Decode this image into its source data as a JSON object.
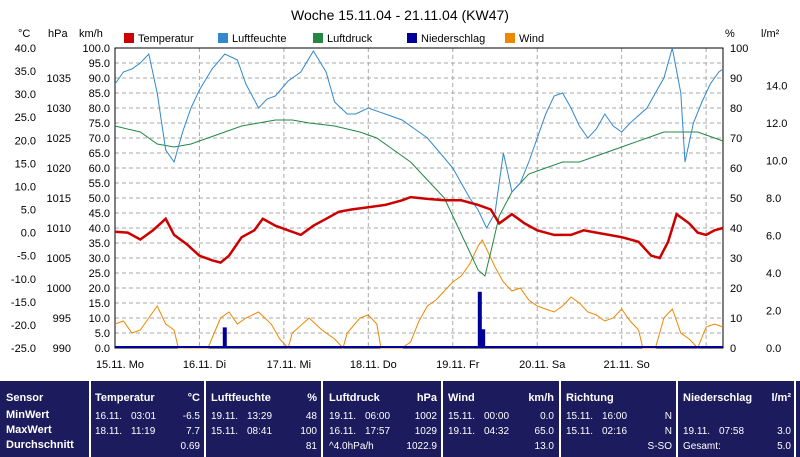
{
  "chart_data": {
    "type": "line",
    "title": "Woche 15.11.04 - 21.11.04 (KW47)",
    "x_ticks": [
      "15.11. Mo",
      "16.11. Di",
      "17.11. Mi",
      "18.11. Do",
      "19.11. Fr",
      "20.11. Sa",
      "21.11. So"
    ],
    "left_axes": [
      {
        "unit": "°C",
        "ticks": [
          "40.0",
          "35.0",
          "30.0",
          "25.0",
          "20.0",
          "15.0",
          "10.0",
          "5.0",
          "0.0",
          "-5.0",
          "-10.0",
          "-15.0",
          "-20.0",
          "-25.0"
        ]
      },
      {
        "unit": "hPa",
        "ticks": [
          "1035",
          "1030",
          "1025",
          "1020",
          "1015",
          "1010",
          "1005",
          "1000",
          "995",
          "990"
        ]
      },
      {
        "unit": "km/h",
        "ticks": [
          "100.0",
          "95.0",
          "90.0",
          "85.0",
          "80.0",
          "75.0",
          "70.0",
          "65.0",
          "60.0",
          "55.0",
          "50.0",
          "45.0",
          "40.0",
          "35.0",
          "30.0",
          "25.0",
          "20.0",
          "15.0",
          "10.0",
          "5.0",
          "0.0"
        ]
      }
    ],
    "right_axes": [
      {
        "unit": "%",
        "ticks": [
          "100",
          "90",
          "80",
          "70",
          "60",
          "50",
          "40",
          "30",
          "20",
          "10",
          "0"
        ]
      },
      {
        "unit": "l/m²",
        "ticks": [
          "14.0",
          "12.0",
          "10.0",
          "8.0",
          "6.0",
          "4.0",
          "2.0",
          "0.0"
        ]
      }
    ],
    "grid": true,
    "legend": [
      {
        "name": "Temperatur",
        "color": "#cc0000"
      },
      {
        "name": "Luftfeuchte",
        "color": "#3388cc"
      },
      {
        "name": "Luftdruck",
        "color": "#228844"
      },
      {
        "name": "Niederschlag",
        "color": "#000099"
      },
      {
        "name": "Wind",
        "color": "#ee8800"
      }
    ],
    "series": [
      {
        "name": "Temperatur",
        "unit": "°C",
        "days": [
          [
            0,
            0.2
          ],
          [
            0.15,
            0.0
          ],
          [
            0.3,
            -1.5
          ],
          [
            0.45,
            0.5
          ],
          [
            0.6,
            3.0
          ],
          [
            0.7,
            -0.5
          ],
          [
            0.85,
            -2.5
          ],
          [
            1.0,
            -5.0
          ],
          [
            1.15,
            -6.0
          ],
          [
            1.25,
            -6.5
          ],
          [
            1.35,
            -5.0
          ],
          [
            1.5,
            -1.0
          ],
          [
            1.65,
            0.5
          ],
          [
            1.75,
            3.0
          ],
          [
            1.9,
            1.5
          ],
          [
            2.05,
            0.5
          ],
          [
            2.2,
            -0.5
          ],
          [
            2.35,
            1.5
          ],
          [
            2.5,
            3.0
          ],
          [
            2.65,
            4.5
          ],
          [
            2.8,
            5.0
          ],
          [
            3.0,
            5.5
          ],
          [
            3.2,
            6.0
          ],
          [
            3.4,
            7.0
          ],
          [
            3.5,
            7.7
          ],
          [
            3.7,
            7.3
          ],
          [
            3.9,
            7.0
          ],
          [
            4.1,
            7.0
          ],
          [
            4.3,
            6.0
          ],
          [
            4.45,
            5.0
          ],
          [
            4.55,
            2.0
          ],
          [
            4.7,
            4.0
          ],
          [
            4.85,
            2.0
          ],
          [
            5.0,
            0.5
          ],
          [
            5.2,
            -0.5
          ],
          [
            5.4,
            -0.5
          ],
          [
            5.55,
            0.5
          ],
          [
            5.7,
            0.0
          ],
          [
            5.85,
            -0.5
          ],
          [
            6.0,
            -1.0
          ],
          [
            6.2,
            -2.0
          ],
          [
            6.35,
            -5.0
          ],
          [
            6.45,
            -5.5
          ],
          [
            6.55,
            -2.0
          ],
          [
            6.65,
            4.0
          ],
          [
            6.8,
            2.0
          ],
          [
            6.9,
            0.0
          ],
          [
            7.0,
            -0.5
          ],
          [
            7.1,
            0.5
          ],
          [
            7.2,
            1.0
          ]
        ]
      },
      {
        "name": "Luftfeuchte",
        "unit": "%",
        "days": [
          [
            0,
            88
          ],
          [
            0.1,
            92
          ],
          [
            0.2,
            93
          ],
          [
            0.3,
            95
          ],
          [
            0.4,
            98
          ],
          [
            0.5,
            85
          ],
          [
            0.6,
            66
          ],
          [
            0.7,
            62
          ],
          [
            0.8,
            72
          ],
          [
            0.9,
            80
          ],
          [
            1.0,
            86
          ],
          [
            1.15,
            93
          ],
          [
            1.3,
            98
          ],
          [
            1.45,
            96
          ],
          [
            1.55,
            88
          ],
          [
            1.7,
            80
          ],
          [
            1.8,
            83
          ],
          [
            1.9,
            84
          ],
          [
            2.05,
            89
          ],
          [
            2.2,
            92
          ],
          [
            2.35,
            99
          ],
          [
            2.5,
            92
          ],
          [
            2.6,
            82
          ],
          [
            2.75,
            78
          ],
          [
            2.85,
            78
          ],
          [
            3.0,
            80
          ],
          [
            3.2,
            78
          ],
          [
            3.4,
            76
          ],
          [
            3.55,
            73
          ],
          [
            3.7,
            70
          ],
          [
            3.85,
            65
          ],
          [
            4.0,
            60
          ],
          [
            4.1,
            55
          ],
          [
            4.2,
            50
          ],
          [
            4.3,
            46
          ],
          [
            4.4,
            40
          ],
          [
            4.5,
            45
          ],
          [
            4.6,
            65
          ],
          [
            4.7,
            52
          ],
          [
            4.8,
            55
          ],
          [
            4.9,
            62
          ],
          [
            5.0,
            70
          ],
          [
            5.1,
            78
          ],
          [
            5.2,
            84
          ],
          [
            5.3,
            85
          ],
          [
            5.4,
            80
          ],
          [
            5.5,
            74
          ],
          [
            5.6,
            70
          ],
          [
            5.7,
            73
          ],
          [
            5.8,
            78
          ],
          [
            5.9,
            74
          ],
          [
            6.0,
            72
          ],
          [
            6.1,
            75
          ],
          [
            6.3,
            80
          ],
          [
            6.4,
            85
          ],
          [
            6.5,
            90
          ],
          [
            6.6,
            100
          ],
          [
            6.7,
            85
          ],
          [
            6.75,
            62
          ],
          [
            6.85,
            75
          ],
          [
            6.95,
            82
          ],
          [
            7.05,
            88
          ],
          [
            7.15,
            92
          ],
          [
            7.2,
            93
          ]
        ]
      },
      {
        "name": "Luftdruck",
        "unit": "hPa",
        "days": [
          [
            0,
            1027
          ],
          [
            0.3,
            1026
          ],
          [
            0.5,
            1024
          ],
          [
            0.7,
            1023.5
          ],
          [
            0.9,
            1024
          ],
          [
            1.1,
            1025
          ],
          [
            1.3,
            1026
          ],
          [
            1.5,
            1027
          ],
          [
            1.7,
            1027.5
          ],
          [
            1.9,
            1028
          ],
          [
            2.1,
            1028
          ],
          [
            2.3,
            1027.5
          ],
          [
            2.6,
            1027
          ],
          [
            2.9,
            1026
          ],
          [
            3.1,
            1025
          ],
          [
            3.3,
            1023
          ],
          [
            3.5,
            1021
          ],
          [
            3.7,
            1018
          ],
          [
            3.9,
            1015
          ],
          [
            4.0,
            1012
          ],
          [
            4.1,
            1009
          ],
          [
            4.2,
            1006
          ],
          [
            4.3,
            1003
          ],
          [
            4.38,
            1002
          ],
          [
            4.45,
            1006
          ],
          [
            4.55,
            1012
          ],
          [
            4.7,
            1016
          ],
          [
            4.9,
            1019
          ],
          [
            5.1,
            1020
          ],
          [
            5.3,
            1021
          ],
          [
            5.5,
            1021
          ],
          [
            5.7,
            1022
          ],
          [
            5.9,
            1023
          ],
          [
            6.1,
            1024
          ],
          [
            6.3,
            1025
          ],
          [
            6.5,
            1026
          ],
          [
            6.7,
            1026
          ],
          [
            6.9,
            1026
          ],
          [
            7.1,
            1025
          ],
          [
            7.2,
            1024.5
          ]
        ]
      },
      {
        "name": "Wind",
        "unit": "km/h",
        "days": [
          [
            0,
            8
          ],
          [
            0.1,
            9
          ],
          [
            0.2,
            5
          ],
          [
            0.3,
            6
          ],
          [
            0.4,
            10
          ],
          [
            0.5,
            14
          ],
          [
            0.6,
            8
          ],
          [
            0.7,
            6
          ],
          [
            0.75,
            0
          ],
          [
            1.0,
            0
          ],
          [
            1.1,
            0
          ],
          [
            1.25,
            10
          ],
          [
            1.35,
            12
          ],
          [
            1.45,
            8
          ],
          [
            1.55,
            10
          ],
          [
            1.7,
            12
          ],
          [
            1.85,
            8
          ],
          [
            1.95,
            3
          ],
          [
            2.05,
            0
          ],
          [
            2.1,
            5
          ],
          [
            2.3,
            10
          ],
          [
            2.45,
            6
          ],
          [
            2.6,
            3
          ],
          [
            2.7,
            0
          ],
          [
            2.75,
            5
          ],
          [
            2.9,
            10
          ],
          [
            3.0,
            11
          ],
          [
            3.1,
            8
          ],
          [
            3.15,
            0
          ],
          [
            3.3,
            0
          ],
          [
            3.4,
            0
          ],
          [
            3.5,
            2
          ],
          [
            3.6,
            9
          ],
          [
            3.7,
            14
          ],
          [
            3.8,
            16
          ],
          [
            3.9,
            19
          ],
          [
            4.0,
            22
          ],
          [
            4.1,
            24
          ],
          [
            4.2,
            28
          ],
          [
            4.3,
            34
          ],
          [
            4.35,
            36
          ],
          [
            4.4,
            33
          ],
          [
            4.5,
            27
          ],
          [
            4.6,
            22
          ],
          [
            4.7,
            19
          ],
          [
            4.8,
            20
          ],
          [
            4.9,
            16
          ],
          [
            5.0,
            14
          ],
          [
            5.1,
            13
          ],
          [
            5.2,
            12
          ],
          [
            5.3,
            14
          ],
          [
            5.4,
            17
          ],
          [
            5.5,
            15
          ],
          [
            5.6,
            12
          ],
          [
            5.7,
            11
          ],
          [
            5.8,
            9
          ],
          [
            5.9,
            10
          ],
          [
            6.0,
            13
          ],
          [
            6.1,
            9
          ],
          [
            6.2,
            6
          ],
          [
            6.25,
            0
          ],
          [
            6.4,
            0
          ],
          [
            6.5,
            10
          ],
          [
            6.6,
            13
          ],
          [
            6.65,
            9
          ],
          [
            6.7,
            5
          ],
          [
            6.8,
            3
          ],
          [
            6.9,
            0
          ],
          [
            7.0,
            7
          ],
          [
            7.1,
            8
          ],
          [
            7.2,
            7
          ]
        ]
      },
      {
        "name": "Niederschlag",
        "unit": "l/m²",
        "days": [
          [
            1.3,
            1.1
          ],
          [
            4.32,
            3.0
          ],
          [
            4.36,
            1.0
          ]
        ]
      }
    ]
  },
  "stats": {
    "sensor": {
      "title": "Sensor",
      "rows": [
        "MinWert",
        "MaxWert",
        "Durchschnitt"
      ]
    },
    "temperatur": {
      "title": "Temperatur",
      "unit": "°C",
      "rows": [
        [
          "16.11.",
          "03:01",
          "-6.5"
        ],
        [
          "18.11.",
          "11:19",
          "7.7"
        ],
        [
          "",
          "",
          "0.69"
        ]
      ]
    },
    "luftfeuchte": {
      "title": "Luftfeuchte",
      "unit": "%",
      "rows": [
        [
          "19.11.",
          "13:29",
          "48"
        ],
        [
          "15.11.",
          "08:41",
          "100"
        ],
        [
          "",
          "",
          "81"
        ]
      ]
    },
    "luftdruck": {
      "title": "Luftdruck",
      "unit": "hPa",
      "rows": [
        [
          "19.11.",
          "06:00",
          "1002"
        ],
        [
          "16.11.",
          "17:57",
          "1029"
        ],
        [
          "^4.0hPa/h",
          "",
          "1022.9"
        ]
      ]
    },
    "wind": {
      "title": "Wind",
      "unit": "km/h",
      "rows": [
        [
          "15.11.",
          "00:00",
          "0.0"
        ],
        [
          "19.11.",
          "04:32",
          "65.0"
        ],
        [
          "",
          "",
          "13.0"
        ]
      ]
    },
    "richtung": {
      "title": "Richtung",
      "rows": [
        [
          "15.11.",
          "16:00",
          "N"
        ],
        [
          "15.11.",
          "02:16",
          "N"
        ],
        [
          "",
          "",
          "S-SO"
        ]
      ]
    },
    "niederschlag": {
      "title": "Niederschlag",
      "unit": "l/m²",
      "rows": [
        [
          "",
          "",
          ""
        ],
        [
          "19.11.",
          "07:58",
          "3.0"
        ],
        [
          "Gesamt:",
          "",
          "5.0"
        ]
      ]
    }
  }
}
